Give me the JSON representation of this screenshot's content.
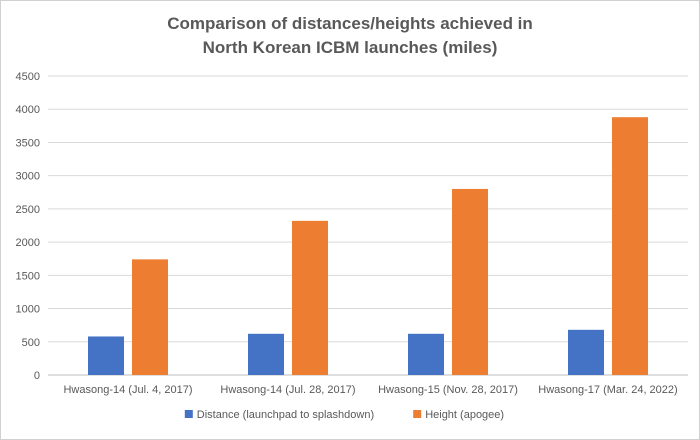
{
  "chart_data": {
    "type": "bar",
    "title_line1": "Comparison of distances/heights achieved in",
    "title_line2": "North Korean ICBM launches (miles)",
    "categories": [
      "Hwasong-14  (Jul. 4, 2017)",
      "Hwasong-14 (Jul. 28, 2017)",
      "Hwasong-15 (Nov. 28, 2017)",
      "Hwasong-17 (Mar. 24, 2022)"
    ],
    "series": [
      {
        "name": "Distance (launchpad to splashdown)",
        "color": "#4472C4",
        "values": [
          580,
          620,
          620,
          680
        ]
      },
      {
        "name": "Height (apogee)",
        "color": "#ED7D31",
        "values": [
          1740,
          2320,
          2800,
          3880
        ]
      }
    ],
    "ylim": [
      0,
      4500
    ],
    "yticks": [
      "0",
      "500",
      "1000",
      "1500",
      "2000",
      "2500",
      "3000",
      "3500",
      "4000",
      "4500"
    ],
    "grid": true,
    "legend": "bottom"
  }
}
